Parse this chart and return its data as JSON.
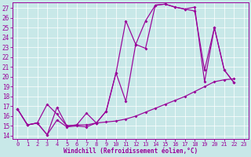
{
  "bg_color": "#c8e8e8",
  "line_color": "#990099",
  "xlabel": "Windchill (Refroidissement éolien,°C)",
  "xlim_min": -0.5,
  "xlim_max": 23.5,
  "ylim_min": 13.7,
  "ylim_max": 27.6,
  "yticks": [
    14,
    15,
    16,
    17,
    18,
    19,
    20,
    21,
    22,
    23,
    24,
    25,
    26,
    27
  ],
  "xticks": [
    0,
    1,
    2,
    3,
    4,
    5,
    6,
    7,
    8,
    9,
    10,
    11,
    12,
    13,
    14,
    15,
    16,
    17,
    18,
    19,
    20,
    21,
    22,
    23
  ],
  "s1x": [
    0,
    1,
    2,
    3,
    4,
    5,
    6,
    7,
    8,
    9,
    10,
    11,
    12,
    13,
    14,
    15,
    16,
    17,
    18,
    19,
    20,
    21,
    22
  ],
  "s1y": [
    16.7,
    15.1,
    15.3,
    17.2,
    16.2,
    15.0,
    15.1,
    15.1,
    15.3,
    16.5,
    20.4,
    25.7,
    23.3,
    25.7,
    27.3,
    27.4,
    27.1,
    26.9,
    27.1,
    19.5,
    25.0,
    20.7,
    19.4
  ],
  "s2x": [
    0,
    1,
    2,
    3,
    4,
    5,
    6,
    7,
    8,
    9,
    10,
    11,
    12,
    13,
    14,
    15,
    16,
    17,
    18,
    19,
    20,
    21,
    22
  ],
  "s2y": [
    16.7,
    15.1,
    15.3,
    14.1,
    16.9,
    15.0,
    15.1,
    16.3,
    15.3,
    16.5,
    20.4,
    17.5,
    23.3,
    22.9,
    27.3,
    27.4,
    27.1,
    26.9,
    26.7,
    20.7,
    25.0,
    20.7,
    19.4
  ],
  "s3x": [
    0,
    1,
    2,
    3,
    4,
    5,
    6,
    7,
    8,
    9,
    10,
    11,
    12,
    13,
    14,
    15,
    16,
    17,
    18,
    19,
    20,
    21,
    22
  ],
  "s3y": [
    16.7,
    15.1,
    15.3,
    14.1,
    15.6,
    14.9,
    15.0,
    14.9,
    15.3,
    15.4,
    15.5,
    15.7,
    16.0,
    16.4,
    16.8,
    17.2,
    17.6,
    18.0,
    18.5,
    19.0,
    19.5,
    19.7,
    19.8
  ],
  "tick_fontsize": 5.0,
  "xlabel_fontsize": 5.5,
  "marker_size": 2.0,
  "line_width": 0.85
}
